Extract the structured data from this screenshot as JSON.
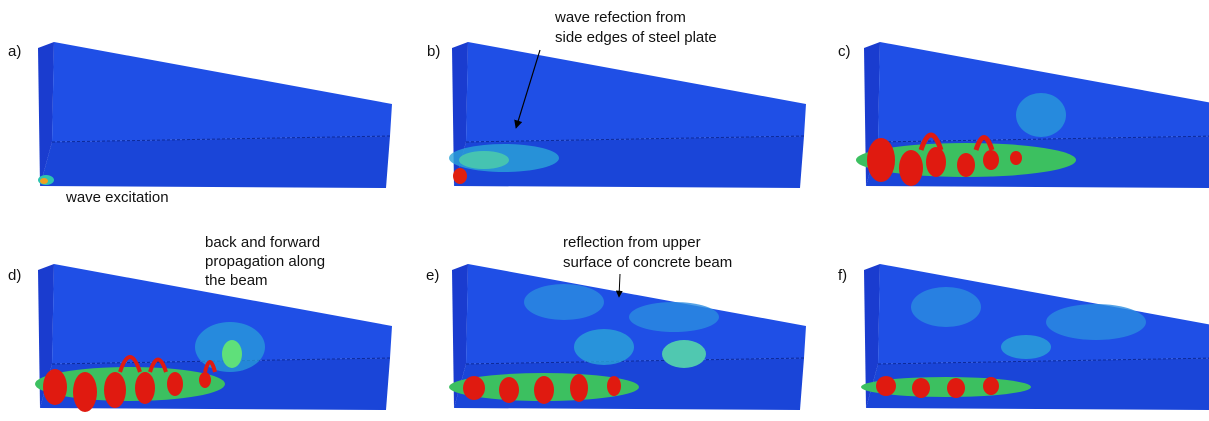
{
  "panels": [
    {
      "label": "a)",
      "annotation": [
        "wave excitation"
      ]
    },
    {
      "label": "b)",
      "annotation": [
        "wave refection from",
        "side edges of steel plate"
      ]
    },
    {
      "label": "c)",
      "annotation": []
    },
    {
      "label": "d)",
      "annotation": [
        "back and forward",
        "propagation along",
        "the beam"
      ]
    },
    {
      "label": "e)",
      "annotation": [
        "reflection from upper",
        "surface of concrete beam"
      ]
    },
    {
      "label": "f)",
      "annotation": []
    }
  ]
}
